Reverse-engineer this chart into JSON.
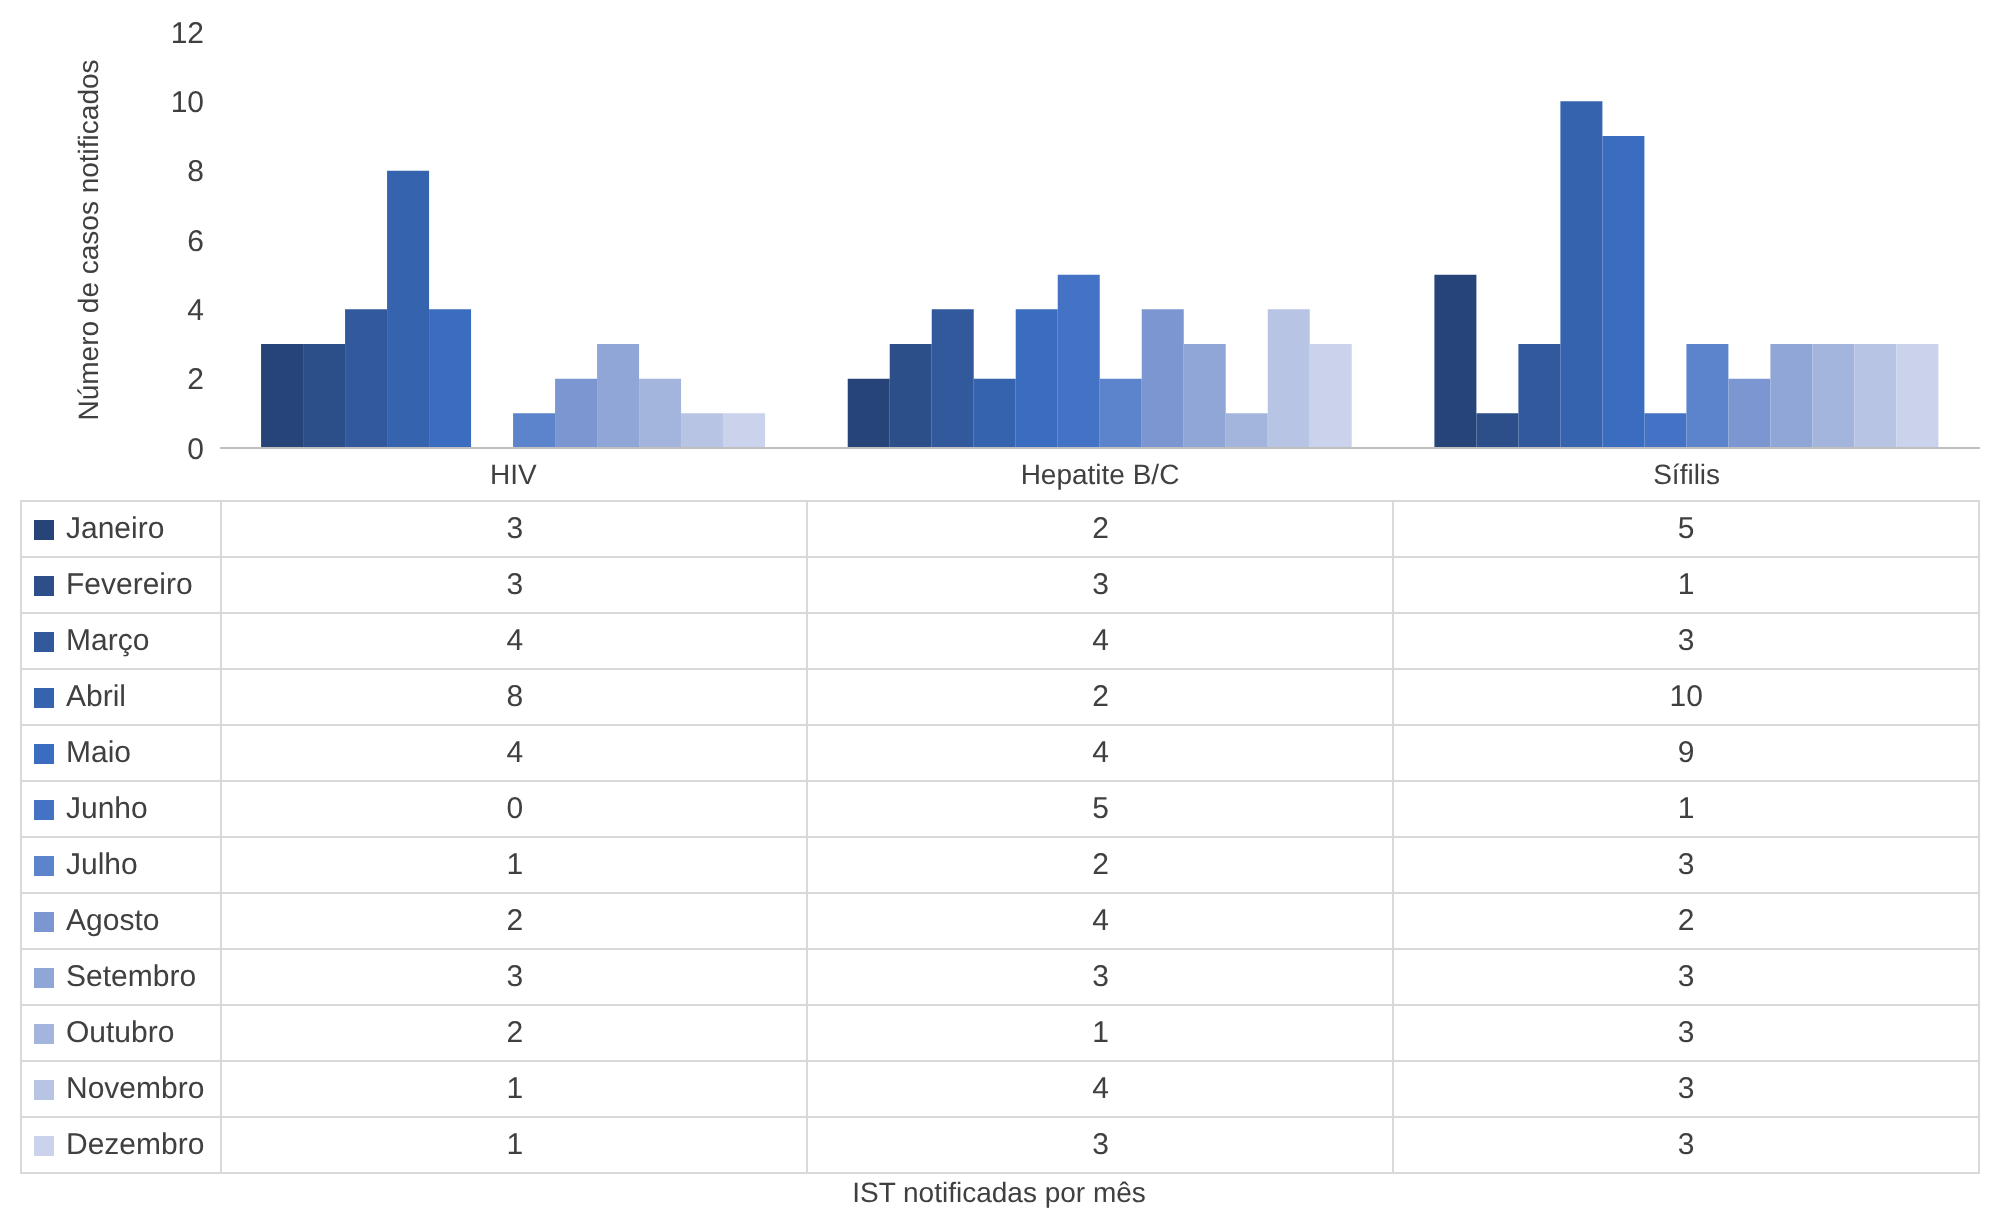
{
  "chart_data": {
    "type": "bar",
    "annotations": [
      "IST notificadas por mês"
    ],
    "ylabel": "Número de casos notificados",
    "categories": [
      "HIV",
      "Hepatite B/C",
      "Sífilis"
    ],
    "series": [
      {
        "name": "Janeiro",
        "color": "#264478",
        "values": [
          3,
          2,
          5
        ]
      },
      {
        "name": "Fevereiro",
        "color": "#2c4f8a",
        "values": [
          3,
          3,
          1
        ]
      },
      {
        "name": "Março",
        "color": "#31599c",
        "values": [
          4,
          4,
          3
        ]
      },
      {
        "name": "Abril",
        "color": "#3563ad",
        "values": [
          8,
          2,
          10
        ]
      },
      {
        "name": "Maio",
        "color": "#3a6cbf",
        "values": [
          4,
          4,
          9
        ]
      },
      {
        "name": "Junho",
        "color": "#4472c4",
        "values": [
          0,
          5,
          1
        ]
      },
      {
        "name": "Julho",
        "color": "#5b84cd",
        "values": [
          1,
          2,
          3
        ]
      },
      {
        "name": "Agosto",
        "color": "#7b96d0",
        "values": [
          2,
          4,
          2
        ]
      },
      {
        "name": "Setembro",
        "color": "#8fa6d6",
        "values": [
          3,
          3,
          3
        ]
      },
      {
        "name": "Outubro",
        "color": "#a3b5dd",
        "values": [
          2,
          1,
          3
        ]
      },
      {
        "name": "Novembro",
        "color": "#b7c4e4",
        "values": [
          1,
          4,
          3
        ]
      },
      {
        "name": "Dezembro",
        "color": "#cad3eb",
        "values": [
          1,
          3,
          3
        ]
      }
    ],
    "ylim": [
      0,
      12
    ],
    "yticks": [
      0,
      2,
      4,
      6,
      8,
      10,
      12
    ],
    "grid": false,
    "legend": "bottom",
    "data_labels": true
  }
}
